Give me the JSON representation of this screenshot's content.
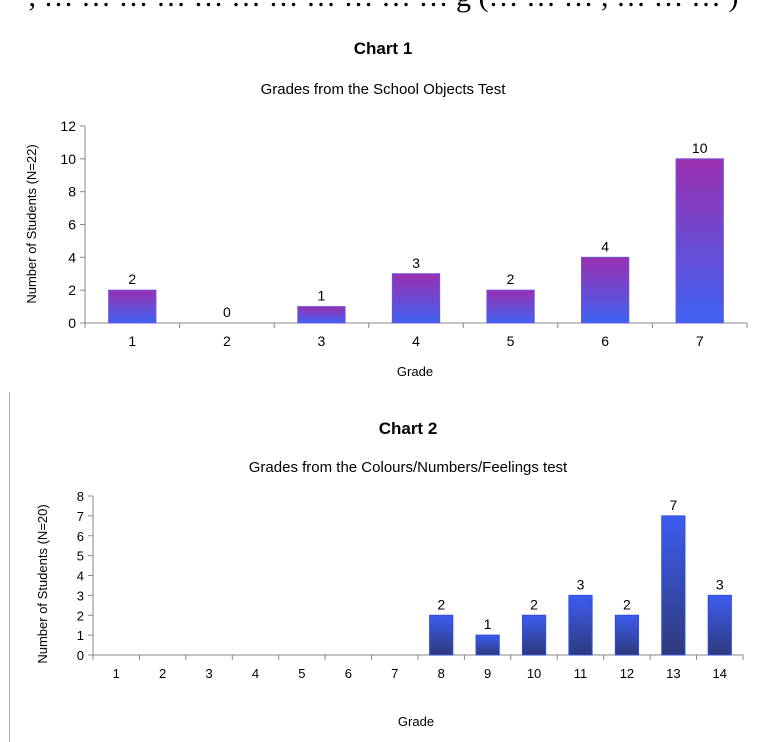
{
  "page": {
    "top_fragment": ", … … … … … … … … … … … g (… … … , … … … )"
  },
  "chart_data": [
    {
      "type": "bar",
      "title": "Chart 1",
      "subtitle": "Grades from the School Objects Test",
      "xlabel": "Grade",
      "ylabel": "Number of Students (N=22)",
      "categories": [
        "1",
        "2",
        "3",
        "4",
        "5",
        "6",
        "7"
      ],
      "values": [
        2,
        0,
        1,
        3,
        2,
        4,
        10
      ],
      "data_labels": [
        "2",
        "0",
        "1",
        "3",
        "2",
        "4",
        "10"
      ],
      "ylim": [
        0,
        12
      ],
      "yticks": [
        0,
        2,
        4,
        6,
        8,
        10,
        12
      ],
      "grid": false,
      "colors": {
        "bar_top": "#9b2fb0",
        "bar_bottom": "#3f63f2",
        "bar_edge": "#6a55dd"
      }
    },
    {
      "type": "bar",
      "title": "Chart 2",
      "subtitle": "Grades from the Colours/Numbers/Feelings test",
      "xlabel": "Grade",
      "ylabel": "Number of Students (N=20)",
      "categories": [
        "1",
        "2",
        "3",
        "4",
        "5",
        "6",
        "7",
        "8",
        "9",
        "10",
        "11",
        "12",
        "13",
        "14"
      ],
      "values": [
        0,
        0,
        0,
        0,
        0,
        0,
        0,
        2,
        1,
        2,
        3,
        2,
        7,
        3
      ],
      "data_labels": [
        "",
        "",
        "",
        "",
        "",
        "",
        "",
        "2",
        "1",
        "2",
        "3",
        "2",
        "7",
        "3"
      ],
      "ylim": [
        0,
        8
      ],
      "yticks": [
        0,
        1,
        2,
        3,
        4,
        5,
        6,
        7,
        8
      ],
      "grid": false,
      "colors": {
        "bar_top": "#3d5cf0",
        "bar_bottom": "#2e3a7c",
        "bar_edge": "#2f4fd8"
      }
    }
  ]
}
